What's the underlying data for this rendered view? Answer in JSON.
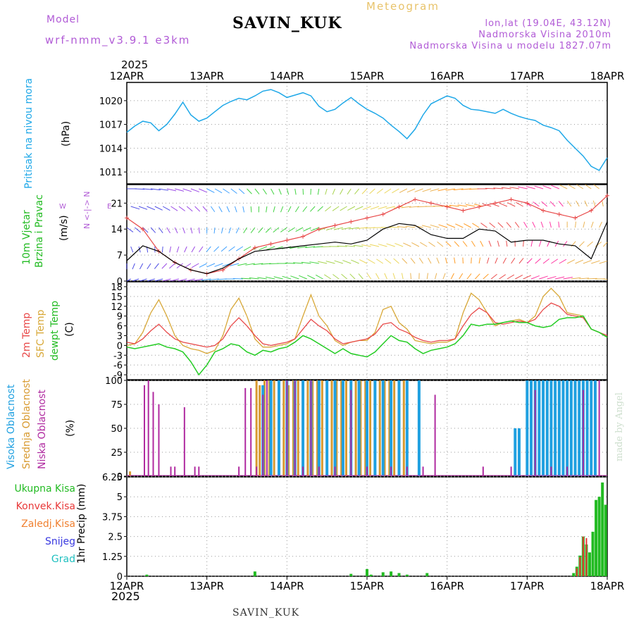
{
  "header": {
    "title": "SAVIN_KUK",
    "model_label": "Model",
    "model_value": "wrf-nmm_v3.9.1  e3km",
    "meteogram_label": "Meteogram",
    "location": "lon,lat (19.04E, 43.12N)",
    "altitude": "Nadmorska Visina 2010m",
    "model_altitude": "Nadmorska Visina u modelu 1827.07m",
    "year_top": "2025",
    "year_bottom": "2025",
    "footer_station": "SAVIN_KUK",
    "watermark": "made by Angel"
  },
  "colors": {
    "pressure": "#1fa8e8",
    "temp2m": "#e84848",
    "sfc_temp": "#d8a838",
    "dewpoint": "#22cc22",
    "high_cloud": "#1fa0e0",
    "mid_cloud": "#d89a30",
    "low_cloud": "#b02aa0",
    "total_precip": "#22bb22",
    "conv_precip": "#e83838",
    "frozen_precip": "#f08030",
    "snow": "#3838e0",
    "graupel": "#20c0c0",
    "wind_speed": "#000000",
    "wind_dir": "#e84848"
  },
  "chart_data": [
    {
      "type": "line",
      "panel": "pressure",
      "ylabels": [
        "Pritisak na nivou mora",
        "(hPa)"
      ],
      "categories": [
        "12APR",
        "13APR",
        "14APR",
        "15APR",
        "16APR",
        "17APR",
        "18APR"
      ],
      "yticks": [
        "1011",
        "1014",
        "1017",
        "1020"
      ],
      "ylim": [
        1009.5,
        1022.3
      ],
      "series": [
        {
          "name": "Pritisak na nivou mora",
          "x": [
            0,
            0.1,
            0.2,
            0.3,
            0.4,
            0.5,
            0.6,
            0.7,
            0.8,
            0.9,
            1.0,
            1.1,
            1.2,
            1.3,
            1.4,
            1.5,
            1.6,
            1.7,
            1.8,
            1.9,
            2.0,
            2.1,
            2.2,
            2.3,
            2.4,
            2.5,
            2.6,
            2.7,
            2.8,
            2.9,
            3.0,
            3.1,
            3.2,
            3.3,
            3.4,
            3.5,
            3.6,
            3.7,
            3.8,
            3.9,
            4.0,
            4.1,
            4.2,
            4.3,
            4.4,
            4.5,
            4.6,
            4.7,
            4.8,
            4.9,
            5.0,
            5.1,
            5.2,
            5.3,
            5.4,
            5.5,
            5.6,
            5.7,
            5.8,
            5.9,
            6.0
          ],
          "values": [
            1016.0,
            1016.8,
            1017.4,
            1017.2,
            1016.2,
            1017.0,
            1018.3,
            1019.8,
            1018.2,
            1017.4,
            1017.8,
            1018.6,
            1019.4,
            1019.9,
            1020.3,
            1020.1,
            1020.6,
            1021.2,
            1021.4,
            1021.0,
            1020.4,
            1020.7,
            1021.0,
            1020.6,
            1019.3,
            1018.6,
            1018.9,
            1019.7,
            1020.4,
            1019.6,
            1018.9,
            1018.4,
            1017.8,
            1016.9,
            1016.1,
            1015.2,
            1016.4,
            1018.2,
            1019.6,
            1020.1,
            1020.6,
            1020.3,
            1019.4,
            1018.9,
            1018.8,
            1018.6,
            1018.4,
            1018.9,
            1018.4,
            1018.0,
            1017.7,
            1017.5,
            1016.9,
            1016.6,
            1016.2,
            1015.0,
            1014.0,
            1013.0,
            1011.7,
            1011.2,
            1012.8
          ]
        }
      ]
    },
    {
      "type": "line",
      "panel": "wind",
      "ylabels": [
        "10m Vjetar",
        "Brzina i Pravac",
        "(m/s)"
      ],
      "direction_labels": {
        "n": "N",
        "w": "W",
        "e": "E",
        "arrows": "<-|->"
      },
      "yticks": [
        "0",
        "7",
        "14",
        "21"
      ],
      "ylim": [
        0,
        26
      ],
      "series": [
        {
          "name": "Brzina",
          "x": [
            0,
            0.2,
            0.4,
            0.6,
            0.8,
            1.0,
            1.2,
            1.4,
            1.6,
            1.8,
            2.0,
            2.2,
            2.4,
            2.6,
            2.8,
            3.0,
            3.2,
            3.4,
            3.6,
            3.8,
            4.0,
            4.2,
            4.4,
            4.6,
            4.8,
            5.0,
            5.2,
            5.4,
            5.6,
            5.8,
            6.0
          ],
          "values": [
            5.5,
            9.5,
            8.0,
            5.0,
            3.0,
            2.0,
            3.5,
            6.0,
            8.0,
            8.5,
            9.0,
            9.5,
            10.0,
            10.5,
            10.0,
            11.0,
            14.0,
            15.5,
            15.0,
            12.5,
            11.5,
            11.5,
            14.0,
            13.5,
            10.5,
            11.0,
            11.0,
            10.0,
            9.5,
            6.0,
            16.0
          ]
        },
        {
          "name": "Pravac",
          "x": [
            0,
            0.2,
            0.4,
            0.6,
            0.8,
            1.0,
            1.2,
            1.4,
            1.6,
            1.8,
            2.0,
            2.2,
            2.4,
            2.6,
            2.8,
            3.0,
            3.2,
            3.4,
            3.6,
            3.8,
            4.0,
            4.2,
            4.4,
            4.6,
            4.8,
            5.0,
            5.2,
            5.4,
            5.6,
            5.8,
            6.0
          ],
          "values": [
            17,
            14,
            8,
            5,
            3,
            2,
            3,
            6,
            9,
            10,
            11,
            12,
            14,
            15,
            16,
            17,
            18,
            20,
            22,
            21,
            20,
            19,
            20,
            21,
            22,
            21,
            19,
            18,
            17,
            19,
            23
          ]
        }
      ]
    },
    {
      "type": "line",
      "panel": "temperature",
      "ylabels": [
        "2m Temp",
        "SFC Temp",
        "dewpt Temp",
        "(C)"
      ],
      "yticks": [
        "-9",
        "-6",
        "-3",
        "0",
        "3",
        "6",
        "9",
        "12",
        "15",
        "18"
      ],
      "ylim": [
        -10.5,
        19.5
      ],
      "series": [
        {
          "name": "2m Temp",
          "x": [
            0,
            0.1,
            0.2,
            0.3,
            0.4,
            0.5,
            0.6,
            0.7,
            0.8,
            0.9,
            1.0,
            1.1,
            1.2,
            1.3,
            1.4,
            1.5,
            1.6,
            1.7,
            1.8,
            1.9,
            2.0,
            2.1,
            2.2,
            2.3,
            2.4,
            2.5,
            2.6,
            2.7,
            2.8,
            2.9,
            3.0,
            3.1,
            3.2,
            3.3,
            3.4,
            3.5,
            3.6,
            3.7,
            3.8,
            3.9,
            4.0,
            4.1,
            4.2,
            4.3,
            4.4,
            4.5,
            4.6,
            4.7,
            4.8,
            4.9,
            5.0,
            5.1,
            5.2,
            5.3,
            5.4,
            5.5,
            5.6,
            5.7,
            5.8,
            5.9,
            6.0
          ],
          "values": [
            1.0,
            0.5,
            2.0,
            4.5,
            6.5,
            4.0,
            2.0,
            1.0,
            0.5,
            0.0,
            -0.5,
            0.0,
            2.0,
            6.0,
            8.5,
            6.0,
            3.0,
            0.5,
            0.0,
            0.5,
            1.0,
            2.0,
            5.0,
            8.0,
            6.0,
            4.5,
            2.0,
            0.5,
            1.0,
            1.5,
            2.0,
            3.5,
            6.5,
            7.0,
            5.0,
            4.0,
            2.5,
            1.5,
            1.0,
            1.5,
            1.5,
            2.0,
            6.0,
            9.5,
            11.5,
            10.0,
            7.0,
            6.5,
            7.0,
            7.5,
            7.0,
            8.0,
            11.0,
            13.0,
            12.0,
            9.5,
            9.0,
            8.5,
            5.0,
            4.0,
            3.0
          ]
        },
        {
          "name": "SFC Temp",
          "x": [
            0,
            0.1,
            0.2,
            0.3,
            0.4,
            0.5,
            0.6,
            0.7,
            0.8,
            0.9,
            1.0,
            1.1,
            1.2,
            1.3,
            1.4,
            1.5,
            1.6,
            1.7,
            1.8,
            1.9,
            2.0,
            2.1,
            2.2,
            2.3,
            2.4,
            2.5,
            2.6,
            2.7,
            2.8,
            2.9,
            3.0,
            3.1,
            3.2,
            3.3,
            3.4,
            3.5,
            3.6,
            3.7,
            3.8,
            3.9,
            4.0,
            4.1,
            4.2,
            4.3,
            4.4,
            4.5,
            4.6,
            4.7,
            4.8,
            4.9,
            5.0,
            5.1,
            5.2,
            5.3,
            5.4,
            5.5,
            5.6,
            5.7,
            5.8,
            5.9,
            6.0
          ],
          "values": [
            0.0,
            0.5,
            4.0,
            10.0,
            14.0,
            9.0,
            3.0,
            0.0,
            -1.0,
            -1.5,
            -2.5,
            -1.5,
            3.0,
            11.0,
            14.5,
            9.0,
            2.0,
            -0.5,
            -0.5,
            0.0,
            0.5,
            2.0,
            9.0,
            15.5,
            9.0,
            6.0,
            1.5,
            0.0,
            1.0,
            1.5,
            1.5,
            4.0,
            11.0,
            12.0,
            7.0,
            5.0,
            1.5,
            1.0,
            0.5,
            1.0,
            1.0,
            2.0,
            10.0,
            16.0,
            14.0,
            10.0,
            6.0,
            7.0,
            7.5,
            8.0,
            7.0,
            9.0,
            15.0,
            17.5,
            15.0,
            10.0,
            9.5,
            9.0,
            5.0,
            4.0,
            2.5
          ]
        },
        {
          "name": "dewpt Temp",
          "x": [
            0,
            0.1,
            0.2,
            0.3,
            0.4,
            0.5,
            0.6,
            0.7,
            0.8,
            0.9,
            1.0,
            1.1,
            1.2,
            1.3,
            1.4,
            1.5,
            1.6,
            1.7,
            1.8,
            1.9,
            2.0,
            2.1,
            2.2,
            2.3,
            2.4,
            2.5,
            2.6,
            2.7,
            2.8,
            2.9,
            3.0,
            3.1,
            3.2,
            3.3,
            3.4,
            3.5,
            3.6,
            3.7,
            3.8,
            3.9,
            4.0,
            4.1,
            4.2,
            4.3,
            4.4,
            4.5,
            4.6,
            4.7,
            4.8,
            4.9,
            5.0,
            5.1,
            5.2,
            5.3,
            5.4,
            5.5,
            5.6,
            5.7,
            5.8,
            5.9,
            6.0
          ],
          "values": [
            -0.5,
            -1.0,
            -0.5,
            0.0,
            0.5,
            -0.5,
            -1.0,
            -2.0,
            -5.0,
            -9.0,
            -6.0,
            -2.0,
            -1.0,
            0.5,
            0.0,
            -2.0,
            -3.0,
            -1.5,
            -2.0,
            -1.0,
            -0.5,
            1.0,
            3.0,
            2.0,
            0.5,
            -1.0,
            -2.5,
            -1.0,
            -2.5,
            -3.0,
            -3.5,
            -2.0,
            0.5,
            3.0,
            1.5,
            1.0,
            -1.0,
            -2.5,
            -1.5,
            -1.0,
            -0.5,
            0.5,
            3.0,
            6.5,
            6.0,
            6.5,
            6.5,
            7.0,
            7.5,
            7.0,
            7.0,
            6.0,
            5.5,
            6.0,
            8.0,
            8.5,
            8.5,
            9.0,
            5.0,
            4.0,
            2.5
          ]
        }
      ]
    },
    {
      "type": "bar",
      "panel": "cloud",
      "ylabels": [
        "Visoka Oblacnost",
        "Srednja Oblacnost",
        "Niska Oblacnost",
        "(%)"
      ],
      "yticks": [
        "0",
        "25",
        "50",
        "75",
        "100"
      ],
      "ylim": [
        0,
        100
      ],
      "series": [
        {
          "name": "Niska Oblacnost",
          "x": [
            0.22,
            0.27,
            0.33,
            0.4,
            0.55,
            0.6,
            0.72,
            0.85,
            0.9,
            1.4,
            1.48,
            1.55,
            1.62,
            1.7,
            1.75,
            2.0,
            2.1,
            2.2,
            2.3,
            2.4,
            2.6,
            2.8,
            3.0,
            3.3,
            3.5,
            3.7,
            3.85,
            4.45,
            4.8,
            5.1,
            5.3,
            5.5,
            5.7,
            5.9
          ],
          "values": [
            95,
            100,
            88,
            75,
            10,
            10,
            72,
            10,
            10,
            10,
            92,
            92,
            10,
            85,
            100,
            100,
            100,
            10,
            100,
            10,
            10,
            90,
            10,
            10,
            10,
            10,
            85,
            10,
            10,
            90,
            10,
            10,
            90,
            100
          ]
        },
        {
          "name": "Srednja Oblacnost",
          "x": [
            0.04,
            1.62,
            1.66,
            1.72,
            1.78,
            1.84,
            1.9,
            1.96,
            2.02,
            2.08,
            2.14,
            2.2,
            2.26,
            2.32,
            2.38,
            2.44,
            2.5,
            2.56,
            2.62,
            2.68,
            2.74,
            2.8,
            2.86,
            2.92,
            2.98,
            3.04,
            3.1,
            3.16,
            3.22,
            3.28,
            3.34,
            3.4,
            3.46,
            5.0,
            5.1,
            5.2,
            5.3,
            5.4,
            5.6
          ],
          "values": [
            5,
            100,
            95,
            100,
            100,
            100,
            100,
            100,
            95,
            100,
            100,
            100,
            100,
            100,
            100,
            100,
            100,
            100,
            100,
            100,
            100,
            95,
            100,
            100,
            100,
            100,
            100,
            100,
            100,
            100,
            100,
            100,
            100,
            10,
            10,
            10,
            10,
            10,
            10
          ]
        },
        {
          "name": "Visoka Oblacnost",
          "x": [
            1.7,
            1.8,
            1.9,
            2.0,
            2.1,
            2.2,
            2.3,
            2.4,
            2.5,
            2.6,
            2.7,
            2.8,
            2.9,
            3.0,
            3.1,
            3.2,
            3.3,
            3.4,
            3.5,
            3.65,
            4.85,
            4.9,
            5.0,
            5.05,
            5.1,
            5.15,
            5.2,
            5.25,
            5.3,
            5.35,
            5.4,
            5.45,
            5.5,
            5.55,
            5.6,
            5.65,
            5.7,
            5.75,
            5.8,
            5.85
          ],
          "values": [
            95,
            100,
            100,
            100,
            100,
            100,
            100,
            100,
            100,
            100,
            100,
            100,
            100,
            100,
            100,
            100,
            100,
            100,
            100,
            100,
            50,
            50,
            100,
            100,
            100,
            100,
            100,
            100,
            100,
            100,
            100,
            100,
            100,
            100,
            100,
            100,
            100,
            100,
            100,
            100
          ]
        }
      ]
    },
    {
      "type": "bar",
      "panel": "precip",
      "ylabels": [
        "1hr Precip (mm)"
      ],
      "legend": [
        "Ukupna Kisa",
        "Konvek.Kisa",
        "Zaledj.Kisa",
        "Snijeg",
        "Grad"
      ],
      "yticks": [
        "0",
        "1.25",
        "2.5",
        "3.75",
        "5",
        "6.25"
      ],
      "ylim": [
        0,
        6.25
      ],
      "series": [
        {
          "name": "Ukupna Kisa",
          "x": [
            0.25,
            1.6,
            2.8,
            3.0,
            3.05,
            3.2,
            3.3,
            3.4,
            3.5,
            3.75,
            5.58,
            5.62,
            5.66,
            5.7,
            5.74,
            5.78,
            5.82,
            5.86,
            5.9,
            5.94,
            5.98
          ],
          "values": [
            0.1,
            0.3,
            0.15,
            0.45,
            0.1,
            0.25,
            0.3,
            0.2,
            0.1,
            0.2,
            0.2,
            0.6,
            1.3,
            2.5,
            2.0,
            1.5,
            2.8,
            4.8,
            5.0,
            5.9,
            4.5
          ]
        },
        {
          "name": "Konvek.Kisa",
          "x": [
            5.62,
            5.66,
            5.7,
            5.74
          ],
          "values": [
            0.5,
            1.2,
            2.5,
            2.4
          ]
        }
      ]
    }
  ]
}
